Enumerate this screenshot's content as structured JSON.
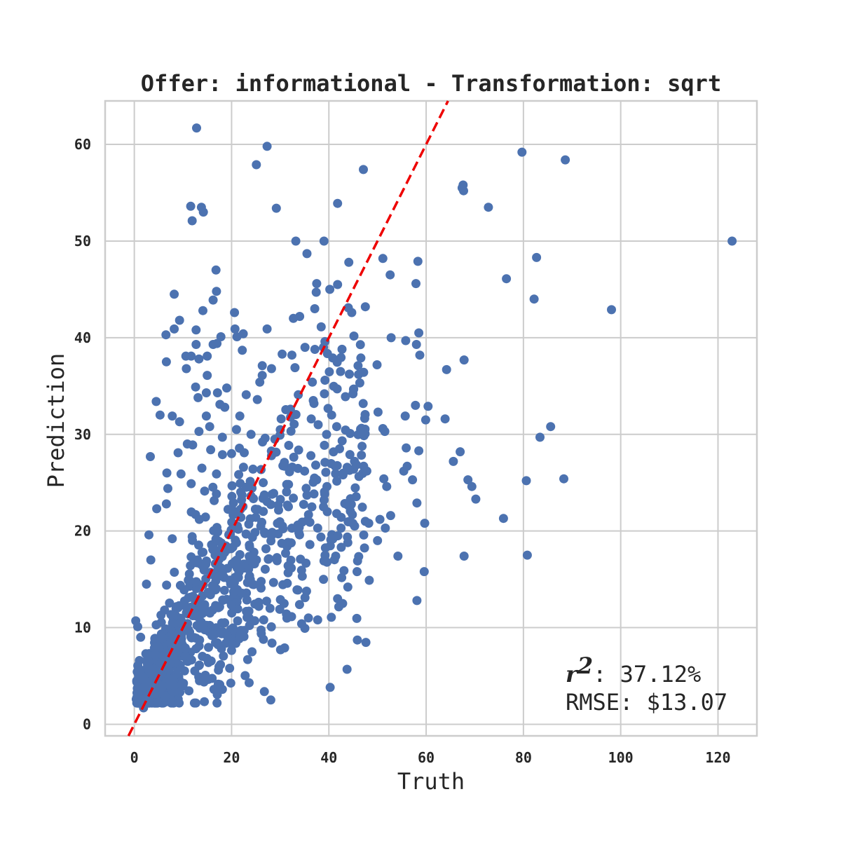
{
  "chart_data": {
    "type": "scatter",
    "title": "Offer: informational - Transformation: sqrt",
    "xlabel": "Truth",
    "ylabel": "Prediction",
    "xlim": [
      -6,
      128
    ],
    "ylim": [
      -1.2,
      64.5
    ],
    "xticks": [
      0,
      20,
      40,
      60,
      80,
      100,
      120
    ],
    "yticks": [
      0,
      10,
      20,
      30,
      40,
      50,
      60
    ],
    "grid": true,
    "reference_line": {
      "style": "dashed",
      "color": "#ee0000",
      "description": "y = x"
    },
    "point_color": "#4c72b0",
    "annotation": {
      "r2_symbol": "r",
      "r2_sup": "2",
      "r2_value": ": 37.12%",
      "rmse_text": "RMSE: $13.07"
    },
    "sample_count": 1120,
    "highlighted_points": [
      [
        12.8,
        61.7
      ],
      [
        27.3,
        59.8
      ],
      [
        25.1,
        57.9
      ],
      [
        79.7,
        59.2
      ],
      [
        88.6,
        58.4
      ],
      [
        47.1,
        57.4
      ],
      [
        67.6,
        55.8
      ],
      [
        67.4,
        55.5
      ],
      [
        67.7,
        55.2
      ],
      [
        41.8,
        53.9
      ],
      [
        11.6,
        53.6
      ],
      [
        13.8,
        53.5
      ],
      [
        14.2,
        53.0
      ],
      [
        11.9,
        52.1
      ],
      [
        29.2,
        53.4
      ],
      [
        72.8,
        53.5
      ],
      [
        122.9,
        50.0
      ],
      [
        33.2,
        50.0
      ],
      [
        39.0,
        50.0
      ],
      [
        35.5,
        48.7
      ],
      [
        51.1,
        48.2
      ],
      [
        82.7,
        48.3
      ],
      [
        58.3,
        47.9
      ],
      [
        44.1,
        47.8
      ],
      [
        16.8,
        47.0
      ],
      [
        52.6,
        46.5
      ],
      [
        76.5,
        46.1
      ],
      [
        37.5,
        45.6
      ],
      [
        41.8,
        45.5
      ],
      [
        57.9,
        45.6
      ],
      [
        16.9,
        44.8
      ],
      [
        37.4,
        44.7
      ],
      [
        40.2,
        45.0
      ],
      [
        8.2,
        44.5
      ],
      [
        82.2,
        44.0
      ],
      [
        16.2,
        43.9
      ],
      [
        98.1,
        42.9
      ],
      [
        37.1,
        43.0
      ],
      [
        14.1,
        42.8
      ],
      [
        47.5,
        43.2
      ],
      [
        44.0,
        43.1
      ],
      [
        44.7,
        42.6
      ],
      [
        20.6,
        42.6
      ],
      [
        34.0,
        42.2
      ],
      [
        32.7,
        42.0
      ],
      [
        9.3,
        41.8
      ],
      [
        8.2,
        40.9
      ],
      [
        12.7,
        40.8
      ],
      [
        27.3,
        40.9
      ],
      [
        20.7,
        40.9
      ],
      [
        6.5,
        40.3
      ],
      [
        22.4,
        40.4
      ],
      [
        58.5,
        40.5
      ],
      [
        21.1,
        40.1
      ],
      [
        17.8,
        40.1
      ],
      [
        52.8,
        40.0
      ],
      [
        55.8,
        39.7
      ],
      [
        39.2,
        39.6
      ],
      [
        58.0,
        39.3
      ],
      [
        16.2,
        39.3
      ],
      [
        17.0,
        39.4
      ],
      [
        12.7,
        39.3
      ],
      [
        42.7,
        38.8
      ],
      [
        22.2,
        38.7
      ],
      [
        35.1,
        39.0
      ],
      [
        38.9,
        39.0
      ],
      [
        30.4,
        38.3
      ],
      [
        58.7,
        38.2
      ],
      [
        32.4,
        38.2
      ],
      [
        10.6,
        38.1
      ],
      [
        15.0,
        38.1
      ],
      [
        11.7,
        38.1
      ],
      [
        13.3,
        37.8
      ],
      [
        40.8,
        37.9
      ],
      [
        67.8,
        37.7
      ],
      [
        6.6,
        37.5
      ],
      [
        49.9,
        37.2
      ],
      [
        26.3,
        37.1
      ],
      [
        46.0,
        37.1
      ],
      [
        28.2,
        36.8
      ],
      [
        10.7,
        36.8
      ],
      [
        64.2,
        36.7
      ],
      [
        42.4,
        36.5
      ],
      [
        26.3,
        36.1
      ],
      [
        15.0,
        36.1
      ],
      [
        46.1,
        36.2
      ],
      [
        25.8,
        35.4
      ],
      [
        36.6,
        35.4
      ],
      [
        39.2,
        35.6
      ],
      [
        19.0,
        34.8
      ],
      [
        12.6,
        34.9
      ],
      [
        41.7,
        34.7
      ],
      [
        14.8,
        34.3
      ],
      [
        17.1,
        34.3
      ],
      [
        23.0,
        34.1
      ],
      [
        43.4,
        33.9
      ],
      [
        13.1,
        33.8
      ],
      [
        25.3,
        33.6
      ],
      [
        4.5,
        33.4
      ],
      [
        36.8,
        33.5
      ],
      [
        57.8,
        33.0
      ],
      [
        60.4,
        32.9
      ],
      [
        32.1,
        32.6
      ],
      [
        18.6,
        32.8
      ],
      [
        17.6,
        33.1
      ],
      [
        5.3,
        32.0
      ],
      [
        7.8,
        31.9
      ],
      [
        14.8,
        31.9
      ],
      [
        21.7,
        31.9
      ],
      [
        30.2,
        31.6
      ],
      [
        50.1,
        32.3
      ],
      [
        55.7,
        31.9
      ],
      [
        59.9,
        31.5
      ],
      [
        63.9,
        31.6
      ],
      [
        51.1,
        30.6
      ],
      [
        51.5,
        30.3
      ],
      [
        37.8,
        31.0
      ],
      [
        41.6,
        30.8
      ],
      [
        15.5,
        30.8
      ],
      [
        13.3,
        30.3
      ],
      [
        9.3,
        31.3
      ],
      [
        85.6,
        30.8
      ],
      [
        83.4,
        29.7
      ],
      [
        21.0,
        30.5
      ],
      [
        24.0,
        30.0
      ],
      [
        26.9,
        29.6
      ],
      [
        18.1,
        29.7
      ],
      [
        28.9,
        29.5
      ],
      [
        10.9,
        29.0
      ],
      [
        67.0,
        28.2
      ],
      [
        58.5,
        28.3
      ],
      [
        55.9,
        28.6
      ],
      [
        42.2,
        28.5
      ],
      [
        12.0,
        28.9
      ],
      [
        15.7,
        28.4
      ],
      [
        9.0,
        28.1
      ],
      [
        36.3,
        27.8
      ],
      [
        28.2,
        27.8
      ],
      [
        3.3,
        27.7
      ],
      [
        20.0,
        28.0
      ],
      [
        22.6,
        28.1
      ],
      [
        65.6,
        27.2
      ],
      [
        39.2,
        27.1
      ],
      [
        41.3,
        26.7
      ],
      [
        45.1,
        26.4
      ],
      [
        30.9,
        26.7
      ],
      [
        35.0,
        26.2
      ],
      [
        55.4,
        26.2
      ],
      [
        56.1,
        26.7
      ],
      [
        24.4,
        26.4
      ],
      [
        6.7,
        26.0
      ],
      [
        9.6,
        25.9
      ],
      [
        13.9,
        26.5
      ],
      [
        16.9,
        25.9
      ],
      [
        68.6,
        25.3
      ],
      [
        51.3,
        25.4
      ],
      [
        57.2,
        25.3
      ],
      [
        69.4,
        24.6
      ],
      [
        88.3,
        25.4
      ],
      [
        80.6,
        25.2
      ],
      [
        26.5,
        25.0
      ],
      [
        51.9,
        24.6
      ],
      [
        39.6,
        24.6
      ],
      [
        37.5,
        25.3
      ],
      [
        6.9,
        24.4
      ],
      [
        11.7,
        24.9
      ],
      [
        70.2,
        23.3
      ],
      [
        32.7,
        23.4
      ],
      [
        35.5,
        23.7
      ],
      [
        36.5,
        22.5
      ],
      [
        38.9,
        22.5
      ],
      [
        58.1,
        22.9
      ],
      [
        52.7,
        21.6
      ],
      [
        50.5,
        21.2
      ],
      [
        47.5,
        21.0
      ],
      [
        41.6,
        21.8
      ],
      [
        75.9,
        21.3
      ],
      [
        59.7,
        20.8
      ],
      [
        48.2,
        20.8
      ],
      [
        42.5,
        20.3
      ],
      [
        51.6,
        20.3
      ],
      [
        37.7,
        20.3
      ],
      [
        4.6,
        22.3
      ],
      [
        6.6,
        22.8
      ],
      [
        3.0,
        19.6
      ],
      [
        7.8,
        19.2
      ],
      [
        50.0,
        19.0
      ],
      [
        40.4,
        19.1
      ],
      [
        43.9,
        18.8
      ],
      [
        36.1,
        18.6
      ],
      [
        31.4,
        18.4
      ],
      [
        41.4,
        17.4
      ],
      [
        54.2,
        17.4
      ],
      [
        67.8,
        17.4
      ],
      [
        80.8,
        17.5
      ],
      [
        39.0,
        16.9
      ],
      [
        45.9,
        16.9
      ],
      [
        3.4,
        17.0
      ],
      [
        43.1,
        15.9
      ],
      [
        45.8,
        15.8
      ],
      [
        59.6,
        15.8
      ],
      [
        48.3,
        14.9
      ],
      [
        38.9,
        15.0
      ],
      [
        43.9,
        14.2
      ],
      [
        2.5,
        14.5
      ],
      [
        58.1,
        12.8
      ],
      [
        41.8,
        13.0
      ],
      [
        35.1,
        13.1
      ],
      [
        30.8,
        12.5
      ],
      [
        25.6,
        12.2
      ],
      [
        27.9,
        12.0
      ],
      [
        29.9,
        11.9
      ],
      [
        35.8,
        11.0
      ],
      [
        37.7,
        10.8
      ],
      [
        34.4,
        10.4
      ],
      [
        26.6,
        10.8
      ],
      [
        30.9,
        7.9
      ],
      [
        28.3,
        8.4
      ],
      [
        24.2,
        7.5
      ],
      [
        23.3,
        6.7
      ],
      [
        19.6,
        5.8
      ],
      [
        17.3,
        5.6
      ],
      [
        13.4,
        4.5
      ],
      [
        4.4,
        2.9
      ],
      [
        1.9,
        1.7
      ],
      [
        0.3,
        10.7
      ],
      [
        0.7,
        10.1
      ],
      [
        0.4,
        2.6
      ],
      [
        0.5,
        4.5
      ],
      [
        1.3,
        9.0
      ]
    ]
  }
}
